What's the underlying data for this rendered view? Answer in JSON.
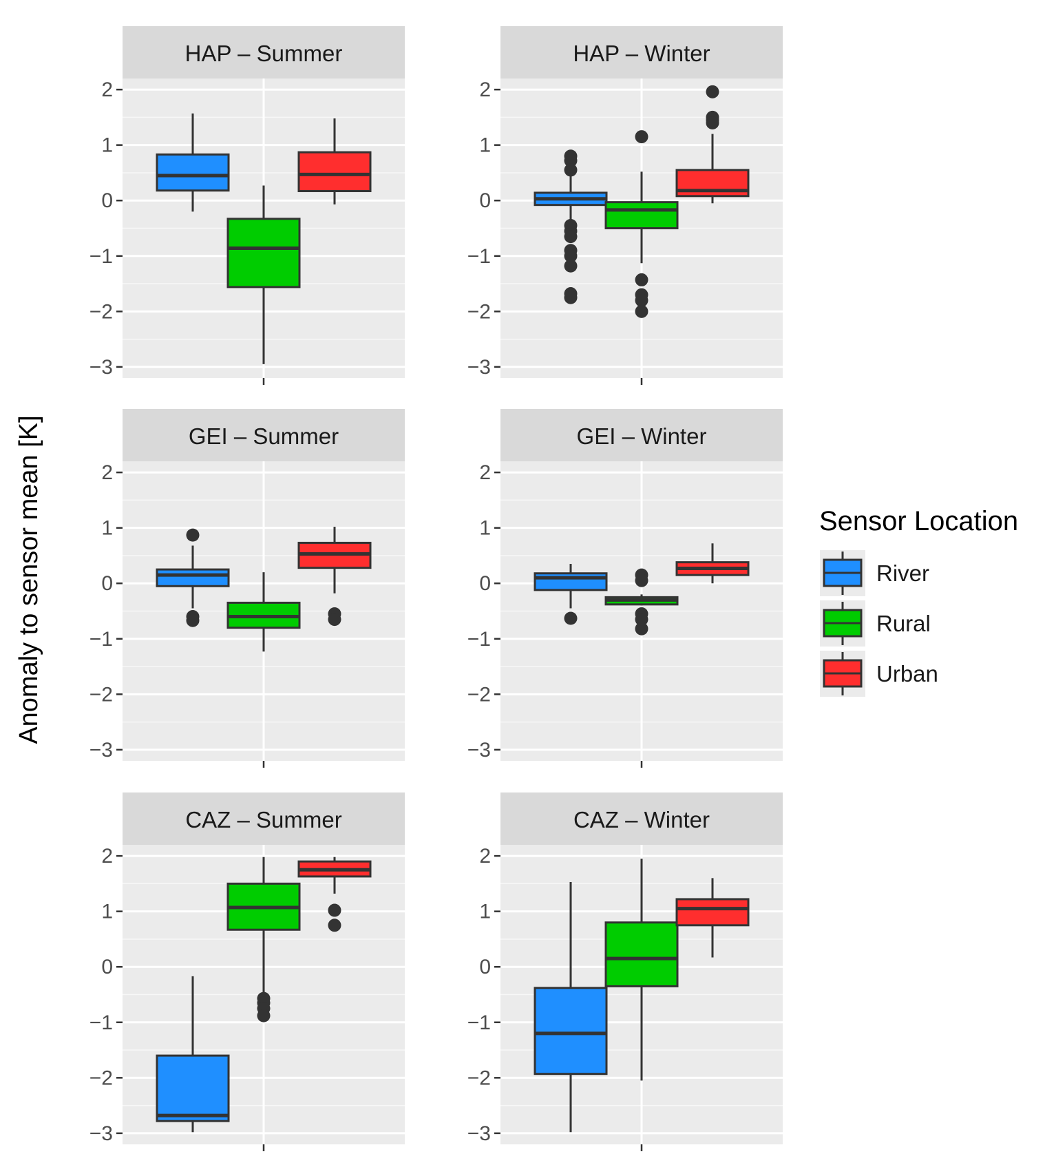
{
  "chart_data": {
    "type": "boxplot",
    "ylabel": "Anomaly to sensor mean [K]",
    "ylim": [
      -3.2,
      2.2
    ],
    "yticks": [
      2,
      1,
      0,
      -1,
      -2,
      -3
    ],
    "ytick_labels": [
      "2",
      "1",
      "0",
      "−1",
      "−2",
      "−3"
    ],
    "grid": true,
    "legend": {
      "title": "Sensor Location",
      "position": "right",
      "entries": [
        {
          "name": "River",
          "color": "#1f8fff"
        },
        {
          "name": "Rural",
          "color": "#00cc00"
        },
        {
          "name": "Urban",
          "color": "#ff2e2e"
        }
      ]
    },
    "panels": [
      {
        "title": "HAP – Summer",
        "boxes": [
          {
            "group": "River",
            "min": -0.2,
            "q1": 0.18,
            "median": 0.45,
            "q3": 0.83,
            "max": 1.57,
            "outliers": []
          },
          {
            "group": "Rural",
            "min": -2.95,
            "q1": -1.56,
            "median": -0.86,
            "q3": -0.33,
            "max": 0.27,
            "outliers": []
          },
          {
            "group": "Urban",
            "min": -0.07,
            "q1": 0.17,
            "median": 0.47,
            "q3": 0.87,
            "max": 1.48,
            "outliers": []
          }
        ]
      },
      {
        "title": "HAP – Winter",
        "boxes": [
          {
            "group": "River",
            "min": -0.35,
            "q1": -0.08,
            "median": 0.03,
            "q3": 0.14,
            "max": 0.45,
            "outliers": [
              0.8,
              0.72,
              0.55,
              -0.45,
              -0.55,
              -0.65,
              -0.9,
              -1.0,
              -1.18,
              -1.68,
              -1.75
            ]
          },
          {
            "group": "Rural",
            "min": -1.13,
            "q1": -0.5,
            "median": -0.17,
            "q3": -0.03,
            "max": 0.52,
            "outliers": [
              1.15,
              -1.43,
              -1.7,
              -1.8,
              -2.0
            ]
          },
          {
            "group": "Urban",
            "min": -0.05,
            "q1": 0.08,
            "median": 0.18,
            "q3": 0.55,
            "max": 1.2,
            "outliers": [
              1.96,
              1.5,
              1.45,
              1.4
            ]
          }
        ]
      },
      {
        "title": "GEI – Summer",
        "boxes": [
          {
            "group": "River",
            "min": -0.45,
            "q1": -0.05,
            "median": 0.15,
            "q3": 0.25,
            "max": 0.68,
            "outliers": [
              0.87,
              -0.6,
              -0.67
            ]
          },
          {
            "group": "Rural",
            "min": -1.23,
            "q1": -0.8,
            "median": -0.6,
            "q3": -0.35,
            "max": 0.2,
            "outliers": []
          },
          {
            "group": "Urban",
            "min": -0.18,
            "q1": 0.28,
            "median": 0.53,
            "q3": 0.73,
            "max": 1.02,
            "outliers": [
              -0.55,
              -0.65
            ]
          }
        ]
      },
      {
        "title": "GEI – Winter",
        "boxes": [
          {
            "group": "River",
            "min": -0.45,
            "q1": -0.12,
            "median": 0.1,
            "q3": 0.18,
            "max": 0.35,
            "outliers": [
              -0.63
            ]
          },
          {
            "group": "Rural",
            "min": -0.4,
            "q1": -0.38,
            "median": -0.3,
            "q3": -0.25,
            "max": -0.2,
            "outliers": [
              0.15,
              0.05,
              -0.55,
              -0.65,
              -0.82
            ]
          },
          {
            "group": "Urban",
            "min": 0.0,
            "q1": 0.15,
            "median": 0.27,
            "q3": 0.38,
            "max": 0.72,
            "outliers": []
          }
        ]
      },
      {
        "title": "CAZ – Summer",
        "boxes": [
          {
            "group": "River",
            "min": -2.98,
            "q1": -2.78,
            "median": -2.68,
            "q3": -1.6,
            "max": -0.17,
            "outliers": []
          },
          {
            "group": "Rural",
            "min": -0.5,
            "q1": 0.67,
            "median": 1.07,
            "q3": 1.5,
            "max": 1.98,
            "outliers": [
              -0.57,
              -0.65,
              -0.75,
              -0.88
            ]
          },
          {
            "group": "Urban",
            "min": 1.32,
            "q1": 1.63,
            "median": 1.75,
            "q3": 1.9,
            "max": 1.98,
            "outliers": [
              1.02,
              0.75
            ]
          }
        ]
      },
      {
        "title": "CAZ – Winter",
        "boxes": [
          {
            "group": "River",
            "min": -2.98,
            "q1": -1.93,
            "median": -1.2,
            "q3": -0.38,
            "max": 1.53,
            "outliers": []
          },
          {
            "group": "Rural",
            "min": -2.05,
            "q1": -0.35,
            "median": 0.15,
            "q3": 0.8,
            "max": 1.95,
            "outliers": []
          },
          {
            "group": "Urban",
            "min": 0.17,
            "q1": 0.75,
            "median": 1.05,
            "q3": 1.22,
            "max": 1.6,
            "outliers": []
          }
        ]
      }
    ]
  }
}
